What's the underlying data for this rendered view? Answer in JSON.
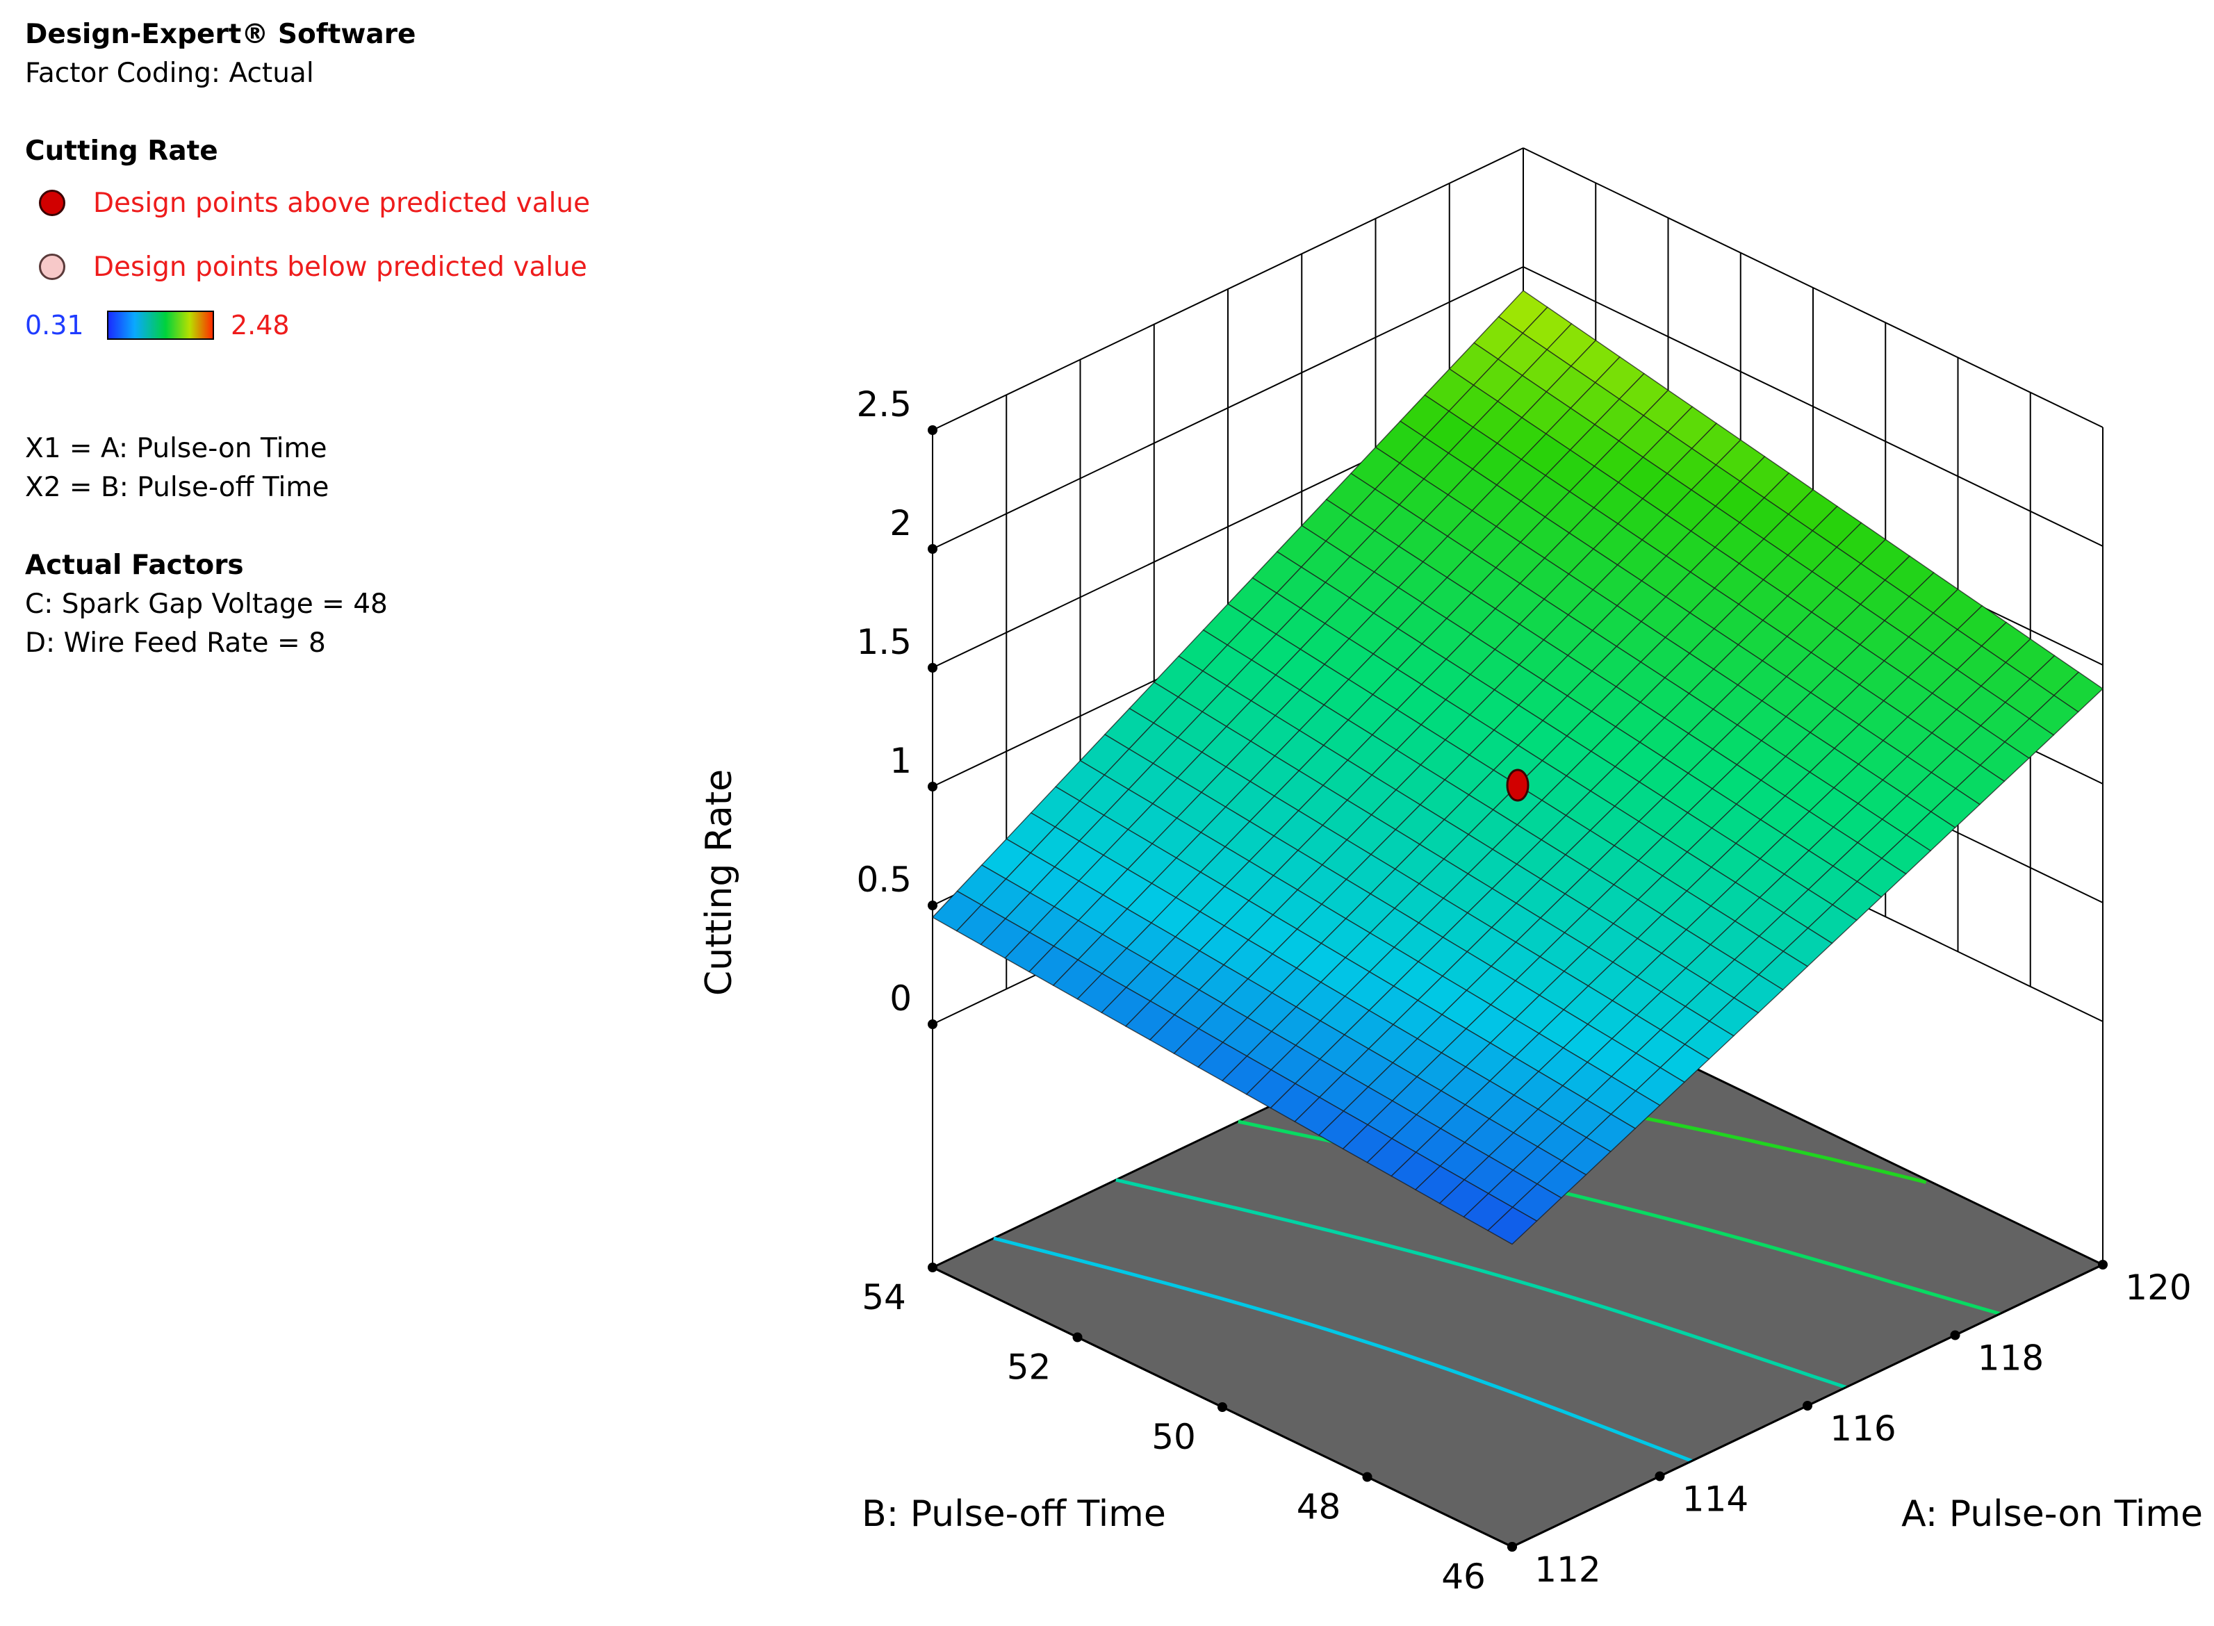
{
  "app": {
    "name": "Design-Expert® Software",
    "factor_coding": "Factor Coding: Actual"
  },
  "response": {
    "name": "Cutting Rate"
  },
  "design_points": [
    {
      "label": "Design points above predicted value",
      "color": "#d10000",
      "border": "#3a0000"
    },
    {
      "label": "Design points below predicted value",
      "color": "#f7c9c9",
      "border": "#5a3a3a"
    }
  ],
  "color_scale": {
    "min": "0.31",
    "max": "2.48",
    "low_color": "#1f3cff",
    "high_color": "#ee1c1c"
  },
  "factor_map": [
    "X1 = A: Pulse-on Time",
    "X2 = B: Pulse-off Time"
  ],
  "actual_factors": {
    "heading": "Actual Factors",
    "items": [
      "C: Spark Gap Voltage = 48",
      "D: Wire Feed Rate = 8"
    ]
  },
  "chart_data": {
    "type": "surface3d",
    "title": "",
    "zlabel": "Cutting Rate",
    "xlabel": "A: Pulse-on Time",
    "ylabel": "B: Pulse-off Time",
    "x_ticks": [
      "112",
      "114",
      "116",
      "118",
      "120"
    ],
    "y_ticks": [
      "46",
      "48",
      "50",
      "52",
      "54"
    ],
    "z_ticks": [
      "0",
      "0.5",
      "1",
      "1.5",
      "2",
      "2.5"
    ],
    "xlim": [
      112,
      120
    ],
    "ylim": [
      46,
      54
    ],
    "zlim": [
      0,
      2.5
    ],
    "surface_corners": [
      {
        "A": 112,
        "B": 46,
        "cutting_rate": 0.25
      },
      {
        "A": 120,
        "B": 46,
        "cutting_rate": 1.4
      },
      {
        "A": 112,
        "B": 54,
        "cutting_rate": 0.45
      },
      {
        "A": 120,
        "B": 54,
        "cutting_rate": 1.9
      }
    ],
    "design_point": {
      "A": 116,
      "B": 50,
      "cutting_rate": 1.0,
      "type": "above"
    },
    "floor_contours": [
      0.6,
      0.9,
      1.2,
      1.5,
      1.8
    ],
    "floor_color": "#636363"
  }
}
